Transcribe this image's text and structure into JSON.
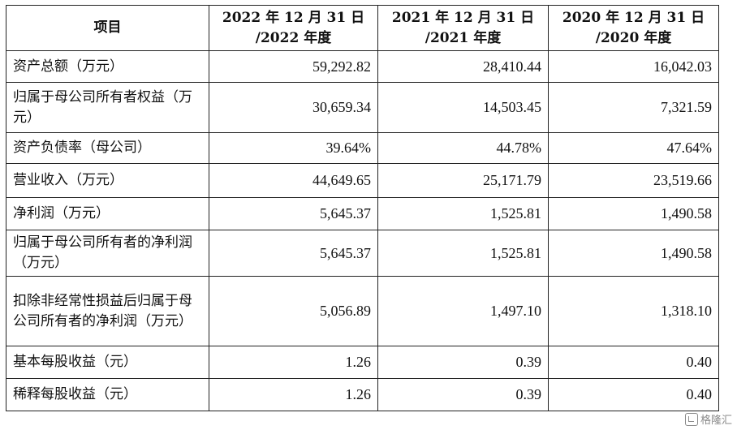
{
  "header": {
    "item": "项目",
    "col1_l1": "2022 年 12 月 31 日",
    "col1_l2": "/2022 年度",
    "col2_l1": "2021 年 12 月 31 日",
    "col2_l2": "/2021 年度",
    "col3_l1": "2020 年 12 月 31 日",
    "col3_l2": "/2020 年度"
  },
  "rows": [
    {
      "label": "资产总额（万元）",
      "v2022": "59,292.82",
      "v2021": "28,410.44",
      "v2020": "16,042.03"
    },
    {
      "label": "归属于母公司所有者权益（万元）",
      "v2022": "30,659.34",
      "v2021": "14,503.45",
      "v2020": "7,321.59"
    },
    {
      "label": "资产负债率（母公司）",
      "v2022": "39.64%",
      "v2021": "44.78%",
      "v2020": "47.64%"
    },
    {
      "label": "营业收入（万元）",
      "v2022": "44,649.65",
      "v2021": "25,171.79",
      "v2020": "23,519.66"
    },
    {
      "label": "净利润（万元）",
      "v2022": "5,645.37",
      "v2021": "1,525.81",
      "v2020": "1,490.58"
    },
    {
      "label": "归属于母公司所有者的净利润（万元）",
      "v2022": "5,645.37",
      "v2021": "1,525.81",
      "v2020": "1,490.58"
    },
    {
      "label": "扣除非经常性损益后归属于母公司所有者的净利润（万元）",
      "v2022": "5,056.89",
      "v2021": "1,497.10",
      "v2020": "1,318.10"
    },
    {
      "label": "基本每股收益（元）",
      "v2022": "1.26",
      "v2021": "0.39",
      "v2020": "0.40"
    },
    {
      "label": "稀释每股收益（元）",
      "v2022": "1.26",
      "v2021": "0.39",
      "v2020": "0.40"
    }
  ],
  "watermark": {
    "text": "格隆汇",
    "icon": "gelonghui-logo-icon"
  }
}
